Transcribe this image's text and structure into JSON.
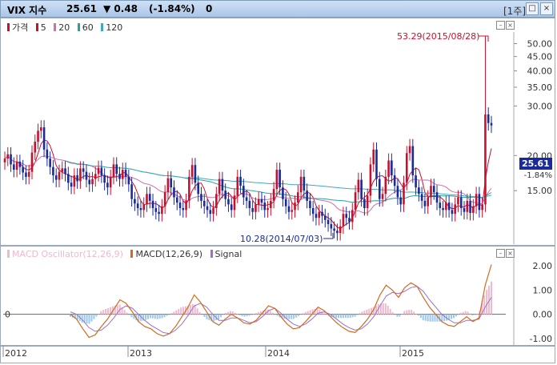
{
  "header": {
    "symbol": "VIX 지수",
    "price": "25.61",
    "change": "▼ 0.48",
    "change_pct": "(-1.84%)",
    "volume": "0",
    "period": "[1주]",
    "window_buttons": [
      "□",
      "×"
    ]
  },
  "colors": {
    "up": "#c8102e",
    "down": "#1a2a9a",
    "ma5": "#c8102e",
    "ma20": "#d070b0",
    "ma60": "#2aa0a0",
    "ma120": "#40a8c0",
    "macd": "#d06a20",
    "signal": "#9a70c8",
    "osc_pos": "#f0b8cc",
    "osc_neg": "#9cc8ee"
  },
  "price_panel": {
    "legend": [
      {
        "label": "가격",
        "color": "#c8102e"
      },
      {
        "label": "5",
        "color": "#c8102e"
      },
      {
        "label": "20",
        "color": "#d070b0"
      },
      {
        "label": "60",
        "color": "#2aa0a0"
      },
      {
        "label": "120",
        "color": "#40a8c0"
      }
    ],
    "y_ticks": [
      "50.00",
      "45.00",
      "40.00",
      "35.00",
      "30.00",
      "20.00",
      "15.00"
    ],
    "last_price_tag": "25.61",
    "last_change_label": "-1.84%",
    "max_annotation": "53.29(2015/08/28)",
    "min_annotation": "10.28(2014/07/03)"
  },
  "macd_panel": {
    "legend": [
      {
        "label": "MACD Oscillator(12,26,9)",
        "color": "#f0b8cc"
      },
      {
        "label": "MACD(12,26,9)",
        "color": "#d06a20"
      },
      {
        "label": "Signal",
        "color": "#9a70c8"
      }
    ],
    "y_ticks": [
      "2.00",
      "1.00",
      "0.00",
      "-1.00"
    ],
    "zero_label": "0"
  },
  "x_axis": {
    "labels": [
      "2012",
      "2013",
      "2014",
      "2015"
    ]
  },
  "chart_data": [
    {
      "type": "candlestick",
      "title": "VIX 지수",
      "x_range": [
        "2012-01",
        "2015-09"
      ],
      "ylim": [
        10,
        55
      ],
      "series": [
        {
          "name": "가격",
          "close_weekly_approx": [
            19.5,
            20.2,
            18.6,
            17.8,
            19.0,
            18.2,
            17.4,
            16.8,
            17.5,
            20.5,
            22.4,
            24.5,
            25.2,
            21.0,
            19.5,
            18.2,
            17.0,
            16.4,
            17.5,
            18.0,
            17.2,
            16.0,
            15.5,
            17.0,
            16.2,
            18.0,
            17.5,
            16.4,
            15.8,
            16.5,
            17.2,
            18.1,
            17.0,
            16.0,
            15.4,
            16.8,
            18.6,
            17.2,
            16.5,
            17.8,
            16.8,
            15.8,
            14.0,
            13.5,
            13.0,
            12.8,
            13.4,
            14.6,
            13.8,
            13.0,
            12.6,
            12.4,
            13.2,
            14.8,
            16.6,
            15.4,
            14.2,
            13.6,
            13.0,
            12.8,
            13.8,
            16.8,
            18.5,
            16.0,
            14.6,
            13.8,
            13.2,
            12.8,
            12.4,
            13.0,
            14.6,
            16.5,
            15.0,
            14.0,
            13.4,
            12.8,
            14.4,
            16.8,
            15.6,
            14.2,
            13.8,
            13.0,
            12.6,
            13.4,
            14.0,
            13.6,
            12.8,
            13.0,
            13.8,
            15.2,
            17.8,
            15.4,
            14.0,
            13.2,
            12.6,
            12.8,
            13.6,
            14.8,
            16.8,
            15.0,
            13.8,
            13.0,
            12.4,
            12.0,
            12.6,
            12.2,
            11.8,
            11.4,
            11.0,
            10.8,
            10.6,
            11.2,
            12.4,
            12.0,
            11.6,
            12.8,
            14.8,
            16.4,
            14.0,
            13.0,
            14.4,
            18.6,
            21.0,
            16.5,
            14.0,
            14.6,
            16.8,
            19.2,
            17.0,
            15.6,
            14.2,
            13.4,
            16.0,
            20.4,
            21.6,
            17.0,
            15.4,
            14.6,
            13.8,
            13.2,
            14.2,
            15.6,
            14.8,
            13.6,
            13.0,
            12.8,
            13.6,
            12.8,
            12.4,
            13.4,
            14.2,
            13.0,
            12.6,
            13.8,
            12.5,
            13.2,
            14.6,
            12.8,
            13.4,
            28.0,
            26.1,
            25.6
          ]
        }
      ],
      "annotations": [
        {
          "label": "53.29(2015/08/28)",
          "x": "2015-08-28",
          "y": 53.29
        },
        {
          "label": "10.28(2014/07/03)",
          "x": "2014-07-03",
          "y": 10.28
        }
      ],
      "last_value": 25.61,
      "last_change": -1.84
    },
    {
      "type": "line+bar",
      "title": "MACD",
      "ylim": [
        -1.1,
        2.2
      ],
      "series": [
        {
          "name": "MACD(12,26,9)",
          "values": [
            0.0,
            -0.2,
            -0.6,
            -0.95,
            -0.85,
            -0.5,
            -0.2,
            0.2,
            0.6,
            0.45,
            0.1,
            -0.3,
            -0.5,
            -0.6,
            -0.8,
            -0.9,
            -0.8,
            -0.5,
            -0.1,
            0.3,
            0.8,
            0.5,
            0.1,
            -0.3,
            -0.45,
            -0.2,
            0.0,
            -0.15,
            -0.35,
            -0.4,
            -0.25,
            0.05,
            0.35,
            0.25,
            -0.1,
            -0.4,
            -0.6,
            -0.55,
            -0.3,
            0.0,
            0.3,
            0.15,
            -0.1,
            -0.35,
            -0.55,
            -0.7,
            -0.75,
            -0.5,
            -0.2,
            0.2,
            0.8,
            1.2,
            1.0,
            0.7,
            1.1,
            1.3,
            1.15,
            0.7,
            0.3,
            0.0,
            -0.3,
            -0.45,
            -0.5,
            -0.3,
            -0.1,
            -0.3,
            -0.15,
            1.2,
            2.05
          ]
        },
        {
          "name": "Signal",
          "values": [
            0.1,
            0.0,
            -0.25,
            -0.55,
            -0.7,
            -0.65,
            -0.45,
            -0.15,
            0.2,
            0.35,
            0.25,
            0.0,
            -0.25,
            -0.45,
            -0.6,
            -0.75,
            -0.8,
            -0.65,
            -0.4,
            -0.05,
            0.35,
            0.45,
            0.3,
            0.0,
            -0.25,
            -0.25,
            -0.15,
            -0.15,
            -0.25,
            -0.35,
            -0.3,
            -0.1,
            0.15,
            0.25,
            0.05,
            -0.2,
            -0.4,
            -0.5,
            -0.4,
            -0.2,
            0.05,
            0.1,
            0.0,
            -0.2,
            -0.4,
            -0.55,
            -0.65,
            -0.6,
            -0.4,
            -0.1,
            0.35,
            0.75,
            0.9,
            0.85,
            0.95,
            1.1,
            1.15,
            0.95,
            0.6,
            0.3,
            0.0,
            -0.2,
            -0.35,
            -0.35,
            -0.25,
            -0.25,
            -0.2,
            0.3,
            0.7
          ]
        },
        {
          "name": "MACD Oscillator(12,26,9)",
          "values": [
            -0.1,
            -0.2,
            -0.35,
            -0.4,
            -0.15,
            0.15,
            0.25,
            0.35,
            0.4,
            0.1,
            -0.15,
            -0.3,
            -0.25,
            -0.15,
            -0.2,
            -0.15,
            0.0,
            0.15,
            0.3,
            0.35,
            0.45,
            0.05,
            -0.2,
            -0.3,
            -0.2,
            0.05,
            0.15,
            0.0,
            -0.1,
            -0.05,
            0.05,
            0.15,
            0.2,
            0.0,
            -0.15,
            -0.2,
            -0.2,
            -0.05,
            0.1,
            0.2,
            0.25,
            0.05,
            -0.1,
            -0.15,
            -0.15,
            -0.15,
            -0.1,
            0.1,
            0.2,
            0.3,
            0.45,
            0.45,
            0.1,
            -0.15,
            0.15,
            0.2,
            0.0,
            -0.25,
            -0.3,
            -0.3,
            -0.3,
            -0.25,
            -0.15,
            0.05,
            0.15,
            -0.05,
            0.05,
            0.9,
            1.35
          ]
        }
      ]
    }
  ]
}
